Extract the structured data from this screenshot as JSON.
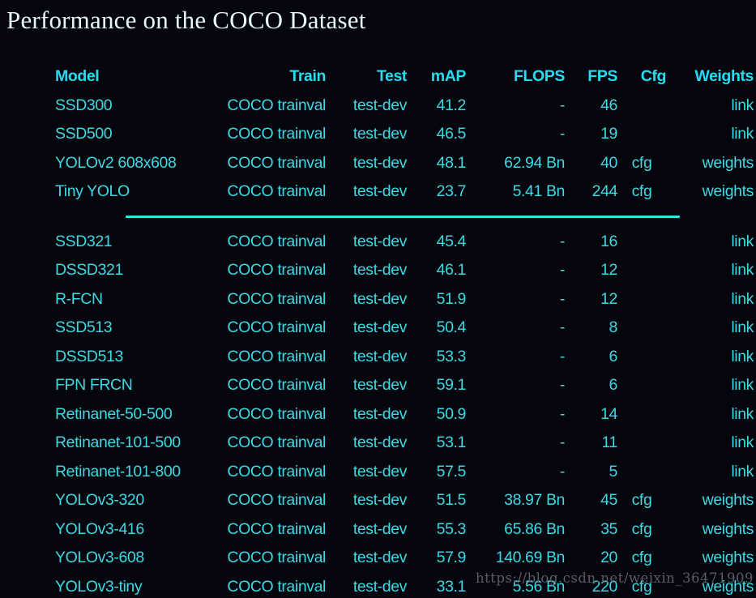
{
  "page": {
    "title": "Performance on the COCO Dataset",
    "watermark": "https://blog.csdn.net/weixin_36471909"
  },
  "colors": {
    "background": "#05050e",
    "title_text": "#e6f7f8",
    "header_text": "#25dcf2",
    "body_text": "#3cd9e2",
    "link_text": "#efa12e",
    "separator_line": "#2de8e0",
    "watermark_text": "#5c5c66"
  },
  "table": {
    "columns": [
      "Model",
      "Train",
      "Test",
      "mAP",
      "FLOPS",
      "FPS",
      "Cfg",
      "Weights"
    ],
    "separator_after_row": 4,
    "rows": [
      {
        "model": "SSD300",
        "train": "COCO trainval",
        "test": "test-dev",
        "map": "41.2",
        "flops": "-",
        "fps": "46",
        "cfg": "",
        "weights": "link"
      },
      {
        "model": "SSD500",
        "train": "COCO trainval",
        "test": "test-dev",
        "map": "46.5",
        "flops": "-",
        "fps": "19",
        "cfg": "",
        "weights": "link"
      },
      {
        "model": "YOLOv2 608x608",
        "train": "COCO trainval",
        "test": "test-dev",
        "map": "48.1",
        "flops": "62.94 Bn",
        "fps": "40",
        "cfg": "cfg",
        "weights": "weights"
      },
      {
        "model": "Tiny YOLO",
        "train": "COCO trainval",
        "test": "test-dev",
        "map": "23.7",
        "flops": "5.41 Bn",
        "fps": "244",
        "cfg": "cfg",
        "weights": "weights"
      },
      {
        "model": "SSD321",
        "train": "COCO trainval",
        "test": "test-dev",
        "map": "45.4",
        "flops": "-",
        "fps": "16",
        "cfg": "",
        "weights": "link"
      },
      {
        "model": "DSSD321",
        "train": "COCO trainval",
        "test": "test-dev",
        "map": "46.1",
        "flops": "-",
        "fps": "12",
        "cfg": "",
        "weights": "link"
      },
      {
        "model": "R-FCN",
        "train": "COCO trainval",
        "test": "test-dev",
        "map": "51.9",
        "flops": "-",
        "fps": "12",
        "cfg": "",
        "weights": "link"
      },
      {
        "model": "SSD513",
        "train": "COCO trainval",
        "test": "test-dev",
        "map": "50.4",
        "flops": "-",
        "fps": "8",
        "cfg": "",
        "weights": "link"
      },
      {
        "model": "DSSD513",
        "train": "COCO trainval",
        "test": "test-dev",
        "map": "53.3",
        "flops": "-",
        "fps": "6",
        "cfg": "",
        "weights": "link"
      },
      {
        "model": "FPN FRCN",
        "train": "COCO trainval",
        "test": "test-dev",
        "map": "59.1",
        "flops": "-",
        "fps": "6",
        "cfg": "",
        "weights": "link"
      },
      {
        "model": "Retinanet-50-500",
        "train": "COCO trainval",
        "test": "test-dev",
        "map": "50.9",
        "flops": "-",
        "fps": "14",
        "cfg": "",
        "weights": "link"
      },
      {
        "model": "Retinanet-101-500",
        "train": "COCO trainval",
        "test": "test-dev",
        "map": "53.1",
        "flops": "-",
        "fps": "11",
        "cfg": "",
        "weights": "link"
      },
      {
        "model": "Retinanet-101-800",
        "train": "COCO trainval",
        "test": "test-dev",
        "map": "57.5",
        "flops": "-",
        "fps": "5",
        "cfg": "",
        "weights": "link"
      },
      {
        "model": "YOLOv3-320",
        "train": "COCO trainval",
        "test": "test-dev",
        "map": "51.5",
        "flops": "38.97 Bn",
        "fps": "45",
        "cfg": "cfg",
        "weights": "weights"
      },
      {
        "model": "YOLOv3-416",
        "train": "COCO trainval",
        "test": "test-dev",
        "map": "55.3",
        "flops": "65.86 Bn",
        "fps": "35",
        "cfg": "cfg",
        "weights": "weights"
      },
      {
        "model": "YOLOv3-608",
        "train": "COCO trainval",
        "test": "test-dev",
        "map": "57.9",
        "flops": "140.69 Bn",
        "fps": "20",
        "cfg": "cfg",
        "weights": "weights"
      },
      {
        "model": "YOLOv3-tiny",
        "train": "COCO trainval",
        "test": "test-dev",
        "map": "33.1",
        "flops": "5.56 Bn",
        "fps": "220",
        "cfg": "cfg",
        "weights": "weights"
      }
    ]
  }
}
